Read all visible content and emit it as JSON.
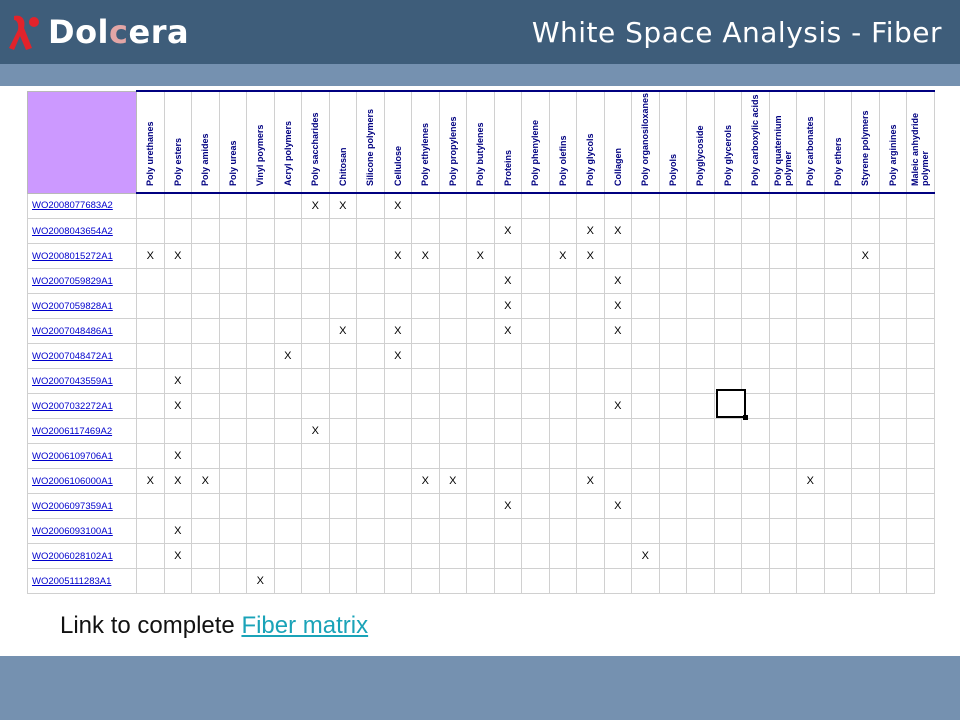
{
  "header": {
    "logo_text_pre": "Dol",
    "logo_text_c": "c",
    "logo_text_post": "era",
    "title": "White Space Analysis - Fiber"
  },
  "columns": [
    "Poly urethanes",
    "Poly esters",
    "Poly amides",
    "Poly ureas",
    "Vinyl poymers",
    "Acryl polymers",
    "Poly saccharides",
    "Chitosan",
    "Silicone polymers",
    "Cellulose",
    "Poly ethylenes",
    "Poly propylenes",
    "Poly butylenes",
    "Proteins",
    "Poly phenylene",
    "Poly olefins",
    "Poly glycols",
    "Collagen",
    "Poly organosiloxanes",
    "Polyols",
    "Polyglycoside",
    "Poly glycerols",
    "Poly carboxylic acids",
    "Poly quaternium polymer",
    "Poly carbonates",
    "Poly ethers",
    "Styrene polymers",
    "Poly arginines",
    "Maleic anhydride polymer"
  ],
  "rows": [
    {
      "patent": "WO2008077683A2",
      "marks": [
        7,
        8,
        10
      ]
    },
    {
      "patent": "WO2008043654A2",
      "marks": [
        14,
        17,
        18
      ]
    },
    {
      "patent": "WO2008015272A1",
      "marks": [
        1,
        2,
        10,
        11,
        13,
        16,
        17,
        27
      ]
    },
    {
      "patent": "WO2007059829A1",
      "marks": [
        14,
        18
      ]
    },
    {
      "patent": "WO2007059828A1",
      "marks": [
        14,
        18
      ]
    },
    {
      "patent": "WO2007048486A1",
      "marks": [
        8,
        10,
        14,
        18
      ]
    },
    {
      "patent": "WO2007048472A1",
      "marks": [
        6,
        10
      ]
    },
    {
      "patent": "WO2007043559A1",
      "marks": [
        2
      ]
    },
    {
      "patent": "WO2007032272A1",
      "marks": [
        2,
        18
      ]
    },
    {
      "patent": "WO2006117469A2",
      "marks": [
        7
      ]
    },
    {
      "patent": "WO2006109706A1",
      "marks": [
        2
      ]
    },
    {
      "patent": "WO2006106000A1",
      "marks": [
        1,
        2,
        3,
        11,
        12,
        17,
        25
      ]
    },
    {
      "patent": "WO2006097359A1",
      "marks": [
        14,
        18
      ]
    },
    {
      "patent": "WO2006093100A1",
      "marks": [
        2
      ]
    },
    {
      "patent": "WO2006028102A1",
      "marks": [
        2,
        19
      ]
    },
    {
      "patent": "WO2005111283A1",
      "marks": [
        5
      ]
    }
  ],
  "mark_symbol": "X",
  "footer": {
    "prefix": "Link to complete ",
    "link_text": "Fiber matrix"
  },
  "colors": {
    "header_bg": "#3e5d7a",
    "band_bg": "#7591b0",
    "corner_bg": "#cc99ff",
    "column_text": "#000080",
    "link": "#1aa3b8"
  }
}
